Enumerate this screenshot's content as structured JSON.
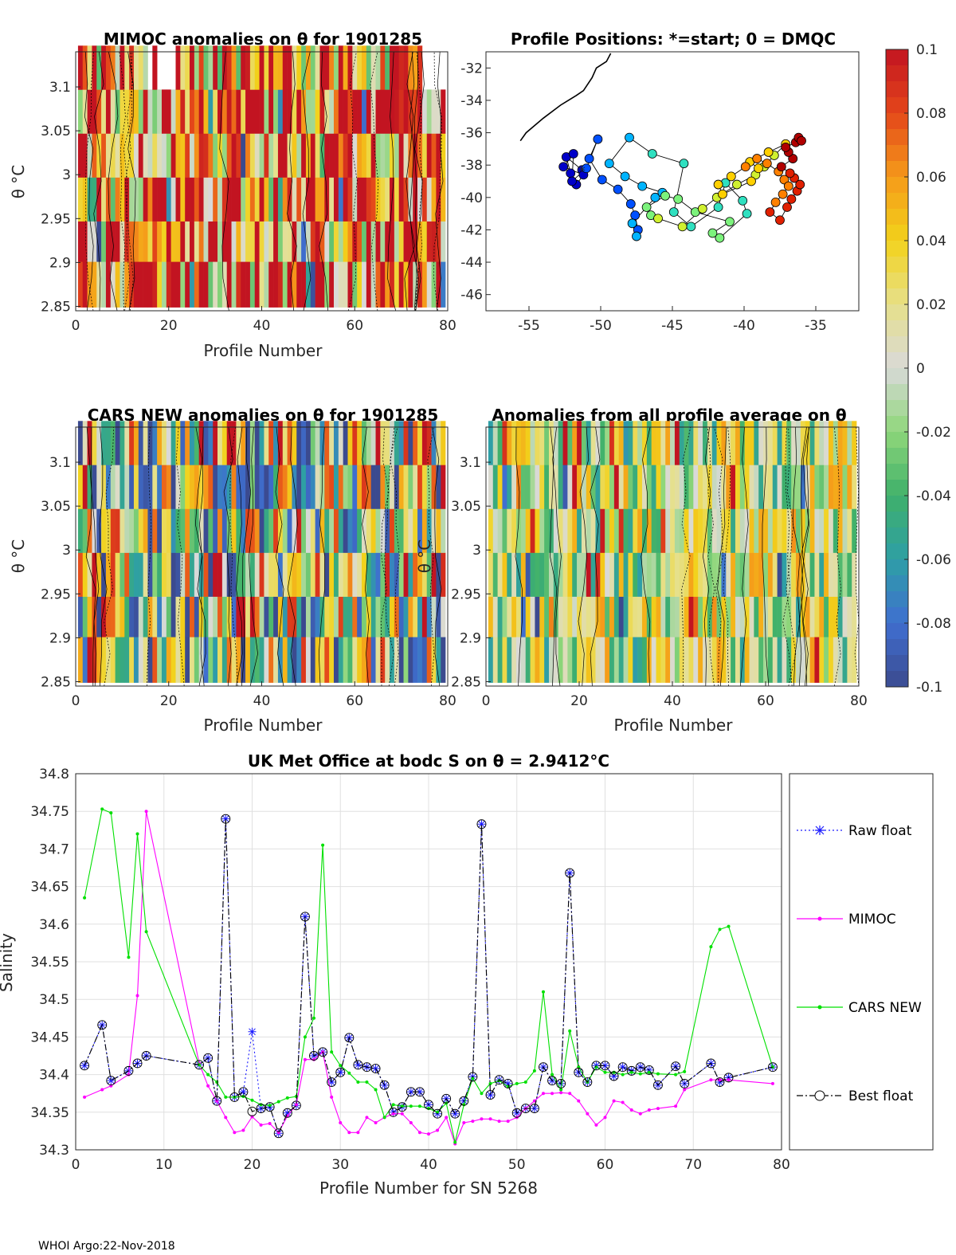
{
  "footer": "WHOI Argo:22-Nov-2018",
  "colormap": {
    "stops": [
      [
        0.0,
        "#3b4a8f"
      ],
      [
        0.1,
        "#3f6fd0"
      ],
      [
        0.2,
        "#2e9fa6"
      ],
      [
        0.3,
        "#3fb06a"
      ],
      [
        0.4,
        "#8fd77a"
      ],
      [
        0.5,
        "#d9d9d9"
      ],
      [
        0.6,
        "#e6e08a"
      ],
      [
        0.7,
        "#f2d21b"
      ],
      [
        0.8,
        "#f59a1a"
      ],
      [
        0.9,
        "#e4461a"
      ],
      [
        1.0,
        "#c21421"
      ]
    ],
    "range": [
      -0.1,
      0.1
    ],
    "ticks": [
      "0.1",
      "0.08",
      "0.06",
      "0.04",
      "0.02",
      "0",
      "-0.02",
      "-0.04",
      "-0.06",
      "-0.08",
      "-0.1"
    ]
  },
  "theta_levels": [
    2.849,
    2.901,
    2.947,
    2.997,
    3.047,
    3.097,
    3.147
  ],
  "chart_data": [
    {
      "type": "heatmap",
      "id": "mimoc",
      "title": "MIMOC anomalies on θ  for 1901285",
      "xlabel": "Profile Number",
      "ylabel": "θ °C",
      "xlim": [
        0,
        80
      ],
      "ylim": [
        2.845,
        3.14
      ],
      "xticks": [
        "0",
        "20",
        "40",
        "60",
        "80"
      ],
      "yticks": [
        "2.85",
        "2.9",
        "2.95",
        "3",
        "3.05",
        "3.1"
      ],
      "nprof": 79,
      "seed": 11,
      "bias": 0.055,
      "spread": 0.09,
      "blank_topright": true
    },
    {
      "type": "scatter",
      "id": "positions",
      "title": "Profile Positions: *=start; 0 = DMQC",
      "xlim": [
        -58,
        -32
      ],
      "ylim": [
        -47,
        -31
      ],
      "xticks": [
        "-55",
        "-50",
        "-45",
        "-40",
        "-35"
      ],
      "yticks": [
        "-32",
        "-34",
        "-36",
        "-38",
        "-40",
        "-42",
        "-44",
        "-46"
      ],
      "lon": [
        -51.3,
        -52.4,
        -52.1,
        -51.7,
        -51.2,
        -52.6,
        -51.9,
        -52.0,
        -51.0,
        -50.2,
        -50.8,
        -49.9,
        -48.8,
        -47.9,
        -47.6,
        -47.4,
        -47.5,
        -47.8,
        -46.2,
        -45.7,
        -47.1,
        -48.3,
        -49.4,
        -48.0,
        -46.4,
        -44.2,
        -44.9,
        -43.7,
        -41.8,
        -41.3,
        -40.1,
        -39.8,
        -41.7,
        -42.2,
        -41.0,
        -43.4,
        -44.6,
        -45.5,
        -46.8,
        -46.5,
        -46.0,
        -44.3,
        -42.9,
        -41.9,
        -40.5,
        -39.2,
        -38.6,
        -37.9,
        -37.1,
        -38.3,
        -39.6,
        -39.0,
        -39.5,
        -41.5,
        -41.8,
        -40.9,
        -39.9,
        -39.1,
        -38.4,
        -37.6,
        -37.2,
        -36.9,
        -37.3,
        -37.8,
        -38.2,
        -37.5,
        -37.0,
        -36.7,
        -36.3,
        -36.1,
        -36.5,
        -36.8,
        -37.4,
        -36.6,
        -36.9,
        -37.1,
        -36.4,
        -36.2,
        -36.0
      ],
      "lat": [
        -38.3,
        -37.5,
        -38.5,
        -39.2,
        -38.6,
        -38.1,
        -37.3,
        -39.0,
        -38.2,
        -36.4,
        -37.6,
        -38.9,
        -39.5,
        -40.4,
        -41.1,
        -42.0,
        -42.4,
        -41.6,
        -40.0,
        -39.7,
        -39.3,
        -38.7,
        -37.9,
        -36.3,
        -37.3,
        -37.9,
        -40.9,
        -41.8,
        -40.6,
        -39.1,
        -40.2,
        -41.0,
        -42.5,
        -42.2,
        -41.5,
        -40.9,
        -40.1,
        -39.9,
        -40.6,
        -41.1,
        -41.3,
        -41.8,
        -40.7,
        -40.0,
        -39.2,
        -38.6,
        -38.1,
        -37.4,
        -36.7,
        -37.2,
        -37.8,
        -38.2,
        -39.0,
        -39.8,
        -39.2,
        -38.7,
        -38.1,
        -37.6,
        -37.9,
        -38.4,
        -38.9,
        -39.3,
        -39.8,
        -40.3,
        -40.9,
        -41.4,
        -40.6,
        -40.1,
        -39.6,
        -39.2,
        -38.8,
        -38.5,
        -38.1,
        -37.6,
        -37.2,
        -36.9,
        -36.6,
        -36.3,
        -36.5
      ],
      "start_marker": "*",
      "coast": [
        [
          -55.6,
          -36.5
        ],
        [
          -55.2,
          -36.0
        ],
        [
          -54.0,
          -35.1
        ],
        [
          -52.8,
          -34.3
        ],
        [
          -51.7,
          -33.7
        ],
        [
          -51.2,
          -33.4
        ],
        [
          -50.6,
          -32.6
        ],
        [
          -50.3,
          -32.0
        ],
        [
          -49.6,
          -31.6
        ],
        [
          -49.3,
          -31.1
        ]
      ]
    },
    {
      "type": "heatmap",
      "id": "cars",
      "title": "CARS NEW anomalies on θ for 1901285",
      "xlabel": "Profile Number",
      "ylabel": "θ °C",
      "xlim": [
        0,
        80
      ],
      "ylim": [
        2.845,
        3.14
      ],
      "xticks": [
        "0",
        "20",
        "40",
        "60",
        "80"
      ],
      "yticks": [
        "2.85",
        "2.9",
        "2.95",
        "3",
        "3.05",
        "3.1"
      ],
      "nprof": 79,
      "seed": 23,
      "bias": -0.01,
      "spread": 0.1,
      "blank_topright": false
    },
    {
      "type": "heatmap",
      "id": "avg",
      "title": "Anomalies from all profile average on θ",
      "xlabel": "Profile Number",
      "ylabel": "θ °C",
      "xlim": [
        0,
        80
      ],
      "ylim": [
        2.845,
        3.14
      ],
      "xticks": [
        "0",
        "20",
        "40",
        "60",
        "80"
      ],
      "yticks": [
        "2.85",
        "2.9",
        "2.95",
        "3",
        "3.05",
        "3.1"
      ],
      "nprof": 79,
      "seed": 37,
      "bias": 0.0,
      "spread": 0.06,
      "blank_topright": false
    },
    {
      "type": "line",
      "id": "salinity",
      "title": "UK Met Office at bodc S on θ = 2.9412°C",
      "xlabel": "Profile Number for SN 5268",
      "ylabel": "Salinity",
      "xlim": [
        0,
        80
      ],
      "ylim": [
        34.3,
        34.8
      ],
      "xticks": [
        "0",
        "10",
        "20",
        "30",
        "40",
        "50",
        "60",
        "70",
        "80"
      ],
      "yticks": [
        "34.3",
        "34.35",
        "34.4",
        "34.45",
        "34.5",
        "34.55",
        "34.6",
        "34.65",
        "34.7",
        "34.75",
        "34.8"
      ],
      "legend": [
        "Raw float",
        "MIMOC",
        "CARS NEW",
        "Best float"
      ],
      "series": [
        {
          "name": "Raw float",
          "color": "#1a1aff",
          "x": [
            1,
            3,
            4,
            6,
            7,
            8,
            14,
            15,
            16,
            17,
            18,
            19,
            20,
            21,
            22,
            23,
            24,
            25,
            26,
            27,
            28,
            29,
            30,
            31,
            32,
            33,
            34,
            35,
            36,
            37,
            38,
            39,
            40,
            41,
            42,
            43,
            44,
            45,
            46,
            47,
            48,
            49,
            50,
            51,
            52,
            53,
            54,
            55,
            56,
            57,
            58,
            59,
            60,
            61,
            62,
            63,
            64,
            65,
            66,
            68,
            69,
            72,
            73,
            74,
            79
          ],
          "y": [
            34.412,
            34.466,
            34.392,
            34.405,
            34.415,
            34.425,
            34.413,
            34.422,
            34.365,
            34.74,
            34.37,
            34.377,
            34.457,
            34.355,
            34.357,
            34.322,
            34.349,
            34.359,
            34.61,
            34.425,
            34.43,
            34.39,
            34.403,
            34.449,
            34.413,
            34.41,
            34.408,
            34.386,
            34.35,
            34.357,
            34.377,
            34.377,
            34.36,
            34.348,
            34.368,
            34.348,
            34.365,
            34.397,
            34.733,
            34.373,
            34.393,
            34.388,
            34.349,
            34.355,
            34.355,
            34.41,
            34.392,
            34.388,
            34.668,
            34.403,
            34.39,
            34.412,
            34.412,
            34.398,
            34.41,
            34.405,
            34.41,
            34.406,
            34.386,
            34.411,
            34.388,
            34.415,
            34.39,
            34.396,
            34.41
          ]
        },
        {
          "name": "MIMOC",
          "color": "#ff00ff",
          "x": [
            1,
            3,
            4,
            6,
            7,
            8,
            14,
            15,
            16,
            17,
            18,
            19,
            20,
            21,
            22,
            23,
            24,
            25,
            26,
            27,
            28,
            29,
            30,
            31,
            32,
            33,
            34,
            35,
            36,
            37,
            38,
            39,
            40,
            41,
            42,
            43,
            44,
            45,
            46,
            47,
            48,
            49,
            50,
            51,
            52,
            53,
            54,
            55,
            56,
            57,
            58,
            59,
            60,
            61,
            62,
            63,
            64,
            65,
            66,
            68,
            69,
            72,
            73,
            74,
            79
          ],
          "y": [
            34.37,
            34.38,
            34.385,
            34.4,
            34.505,
            34.75,
            34.415,
            34.385,
            34.365,
            34.343,
            34.323,
            34.326,
            34.344,
            34.333,
            34.335,
            34.323,
            34.345,
            34.36,
            34.42,
            34.42,
            34.43,
            34.37,
            34.336,
            34.323,
            34.323,
            34.343,
            34.336,
            34.343,
            34.348,
            34.348,
            34.336,
            34.323,
            34.321,
            34.326,
            34.343,
            34.308,
            34.336,
            34.338,
            34.341,
            34.341,
            34.338,
            34.338,
            34.343,
            34.355,
            34.365,
            34.375,
            34.375,
            34.376,
            34.375,
            34.365,
            34.348,
            34.333,
            34.343,
            34.365,
            34.363,
            34.353,
            34.348,
            34.353,
            34.355,
            34.358,
            34.38,
            34.393,
            34.393,
            34.393,
            34.388
          ]
        },
        {
          "name": "CARS NEW",
          "color": "#00e000",
          "x": [
            1,
            3,
            4,
            6,
            7,
            8,
            14,
            15,
            16,
            17,
            18,
            19,
            20,
            21,
            22,
            23,
            24,
            25,
            26,
            27,
            28,
            29,
            30,
            31,
            32,
            33,
            34,
            35,
            36,
            37,
            38,
            39,
            40,
            41,
            42,
            43,
            44,
            45,
            46,
            47,
            48,
            49,
            50,
            51,
            52,
            53,
            54,
            55,
            56,
            57,
            58,
            59,
            60,
            61,
            62,
            63,
            64,
            65,
            66,
            68,
            69,
            72,
            73,
            74,
            79
          ],
          "y": [
            34.635,
            34.753,
            34.748,
            34.556,
            34.72,
            34.59,
            34.413,
            34.4,
            34.39,
            34.37,
            34.37,
            34.371,
            34.366,
            34.36,
            34.359,
            34.364,
            34.369,
            34.371,
            34.45,
            34.475,
            34.705,
            34.43,
            34.412,
            34.402,
            34.39,
            34.39,
            34.38,
            34.343,
            34.36,
            34.358,
            34.358,
            34.358,
            34.355,
            34.35,
            34.362,
            34.31,
            34.36,
            34.395,
            34.375,
            34.388,
            34.392,
            34.384,
            34.388,
            34.39,
            34.405,
            34.51,
            34.4,
            34.38,
            34.458,
            34.41,
            34.39,
            34.41,
            34.403,
            34.403,
            34.4,
            34.403,
            34.401,
            34.403,
            34.401,
            34.4,
            34.404,
            34.57,
            34.593,
            34.597,
            34.41
          ]
        },
        {
          "name": "Best float",
          "color": "#000000",
          "x": [
            1,
            3,
            4,
            6,
            7,
            8,
            14,
            15,
            16,
            17,
            18,
            19,
            20,
            21,
            22,
            23,
            24,
            25,
            26,
            27,
            28,
            29,
            30,
            31,
            32,
            33,
            34,
            35,
            36,
            37,
            38,
            39,
            40,
            41,
            42,
            43,
            44,
            45,
            46,
            47,
            48,
            49,
            50,
            51,
            52,
            53,
            54,
            55,
            56,
            57,
            58,
            59,
            60,
            61,
            62,
            63,
            64,
            65,
            66,
            68,
            69,
            72,
            73,
            74,
            79
          ],
          "y": [
            34.412,
            34.466,
            34.392,
            34.405,
            34.415,
            34.425,
            34.413,
            34.422,
            34.365,
            34.74,
            34.37,
            34.377,
            34.351,
            34.355,
            34.357,
            34.322,
            34.349,
            34.359,
            34.61,
            34.425,
            34.43,
            34.39,
            34.403,
            34.449,
            34.413,
            34.41,
            34.408,
            34.386,
            34.35,
            34.357,
            34.377,
            34.377,
            34.36,
            34.348,
            34.368,
            34.348,
            34.365,
            34.397,
            34.733,
            34.373,
            34.393,
            34.388,
            34.349,
            34.355,
            34.355,
            34.41,
            34.392,
            34.388,
            34.668,
            34.403,
            34.39,
            34.412,
            34.412,
            34.398,
            34.41,
            34.405,
            34.41,
            34.406,
            34.386,
            34.411,
            34.388,
            34.415,
            34.39,
            34.396,
            34.41
          ]
        }
      ]
    }
  ]
}
